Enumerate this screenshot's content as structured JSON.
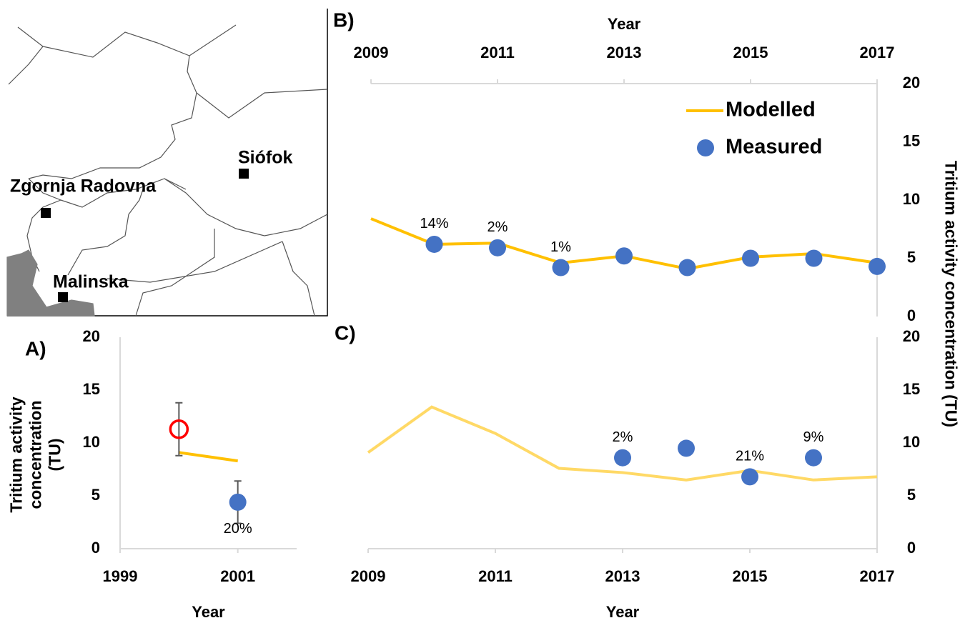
{
  "map": {
    "places": [
      "Siófok",
      "Zgornja Radovna",
      "Malinska"
    ]
  },
  "chart_data": [
    {
      "type": "line",
      "panel": "A)",
      "xlabel": "Year",
      "ylabel": "Tritium activity concentration (TU)",
      "x": [
        2000,
        2001
      ],
      "xlim": [
        1999,
        2002
      ],
      "xticks": [
        1999,
        2001
      ],
      "ylim": [
        0,
        20
      ],
      "yticks": [
        0,
        5,
        10,
        15,
        20
      ],
      "point_label_position": "below",
      "series": [
        {
          "color": "#ffc000",
          "marker": "line",
          "values": [
            9.1,
            8.3
          ]
        },
        {
          "color": "#ff0000",
          "marker": "open-circle",
          "values": [
            11.3,
            null
          ],
          "errors": [
            2.5,
            null
          ]
        },
        {
          "color": "#4472c4",
          "marker": "circle",
          "values": [
            null,
            4.4
          ],
          "errors": [
            null,
            2.0
          ],
          "point_labels": [
            null,
            "20%"
          ]
        }
      ]
    },
    {
      "type": "line",
      "panel": "B)",
      "xlabel": "Year",
      "ylabel": "Tritium activity concentration (TU)",
      "x": [
        2009,
        2010,
        2011,
        2012,
        2013,
        2014,
        2015,
        2016,
        2017
      ],
      "xlim": [
        2009,
        2017
      ],
      "xticks": [
        2009,
        2011,
        2013,
        2015,
        2017
      ],
      "ylim": [
        0,
        20
      ],
      "yticks": [
        0,
        5,
        10,
        15,
        20
      ],
      "x_axis": "top",
      "y_axis": "right",
      "legend": "upper right",
      "series": [
        {
          "name": "Modelled",
          "color": "#ffc000",
          "marker": "line",
          "values": [
            8.4,
            6.2,
            6.3,
            4.6,
            5.2,
            4.1,
            5.1,
            5.4,
            4.6
          ]
        },
        {
          "name": "Measured",
          "color": "#4472c4",
          "marker": "circle",
          "values": [
            null,
            6.2,
            5.9,
            4.2,
            5.2,
            4.2,
            5.0,
            5.0,
            4.3
          ],
          "point_labels": [
            null,
            "14%",
            "2%",
            "1%",
            null,
            null,
            null,
            null,
            null
          ]
        }
      ]
    },
    {
      "type": "line",
      "panel": "C)",
      "xlabel": "Year",
      "x": [
        2009,
        2010,
        2011,
        2012,
        2013,
        2014,
        2015,
        2016,
        2017
      ],
      "xlim": [
        2009,
        2017
      ],
      "xticks": [
        2009,
        2011,
        2013,
        2015,
        2017
      ],
      "ylim": [
        0,
        20
      ],
      "yticks": [
        0,
        5,
        10,
        15,
        20
      ],
      "y_axis": "right",
      "series": [
        {
          "color": "#ffd966",
          "marker": "line",
          "values": [
            9.1,
            13.4,
            10.9,
            7.6,
            7.2,
            6.5,
            7.4,
            6.5,
            6.8
          ]
        },
        {
          "color": "#4472c4",
          "marker": "circle",
          "values": [
            null,
            null,
            null,
            null,
            8.6,
            9.5,
            6.8,
            8.6,
            null
          ],
          "point_labels": [
            null,
            null,
            null,
            null,
            "2%",
            null,
            "21%",
            "9%",
            null
          ]
        }
      ]
    }
  ]
}
